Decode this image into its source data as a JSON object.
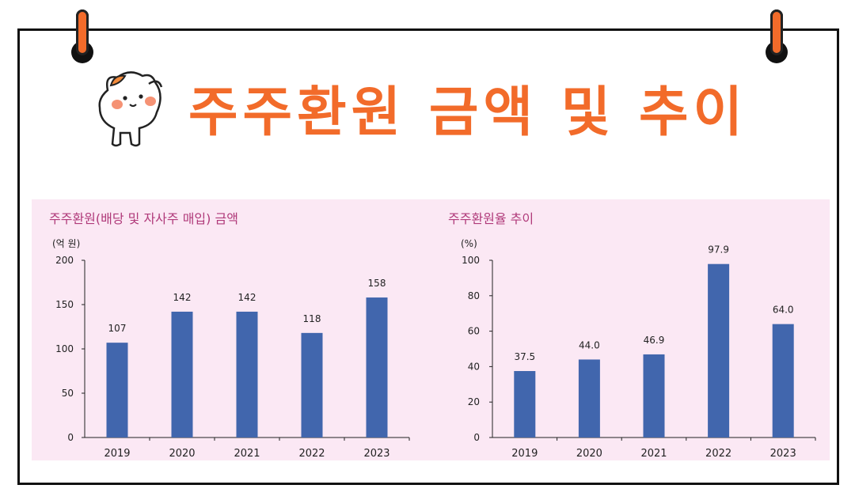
{
  "page": {
    "title": "주주환원 금액 및 추이",
    "accent_color": "#f26b2a",
    "bar_color": "#4166ad",
    "panel_color": "#fbe8f4"
  },
  "chart_data": [
    {
      "type": "bar",
      "title": "주주환원(배당 및 자사주 매입) 금액",
      "unit_label": "(억 원)",
      "categories": [
        "2019",
        "2020",
        "2021",
        "2022",
        "2023"
      ],
      "values": [
        107,
        142,
        142,
        118,
        158
      ],
      "value_labels": [
        "107",
        "142",
        "142",
        "118",
        "158"
      ],
      "ylim": [
        0,
        200
      ],
      "yticks": [
        0,
        50,
        100,
        150,
        200
      ],
      "grid": false,
      "legend": false
    },
    {
      "type": "bar",
      "title": "주주환원율 추이",
      "unit_label": "(%)",
      "categories": [
        "2019",
        "2020",
        "2021",
        "2022",
        "2023"
      ],
      "values": [
        37.5,
        44.0,
        46.9,
        97.9,
        64.0
      ],
      "value_labels": [
        "37.5",
        "44.0",
        "46.9",
        "97.9",
        "64.0"
      ],
      "ylim": [
        0,
        100
      ],
      "yticks": [
        0,
        20,
        40,
        60,
        80,
        100
      ],
      "grid": false,
      "legend": false
    }
  ]
}
